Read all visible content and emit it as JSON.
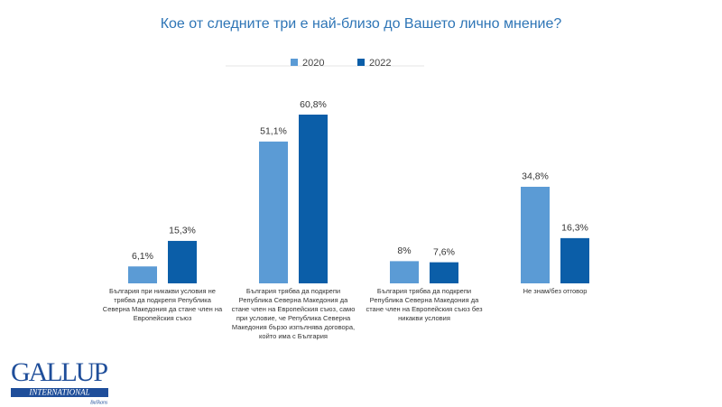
{
  "chart_data": {
    "type": "bar",
    "title": "Кое от следните три е най-близо до Вашето лично мнение?",
    "categories": [
      "България при никакви условия не трябва да подкрепя Република Северна Македония да стане член на Европейския съюз",
      "България трябва да подкрепи Република Северна Македония да стане член на Европейския съюз, само при условие, че Република Северна Македония бързо изпълнява договора, който има с България",
      "България трябва да подкрепи Република Северна Македония да стане член на Европейския съюз без никакви условия",
      "Не знам/без отговор"
    ],
    "series": [
      {
        "name": "2020",
        "color": "#5b9bd5",
        "values": [
          6.1,
          51.1,
          8,
          34.8
        ],
        "value_labels": [
          "6,1%",
          "51,1%",
          "8%",
          "34,8%"
        ]
      },
      {
        "name": "2022",
        "color": "#0b5ea8",
        "values": [
          15.3,
          60.8,
          7.6,
          16.3
        ],
        "value_labels": [
          "15,3%",
          "60,8%",
          "7,6%",
          "16,3%"
        ]
      }
    ],
    "legend": "top"
  },
  "logo": {
    "name": "GALLUP",
    "line2": "INTERNATIONAL",
    "line3": "Balkans"
  }
}
